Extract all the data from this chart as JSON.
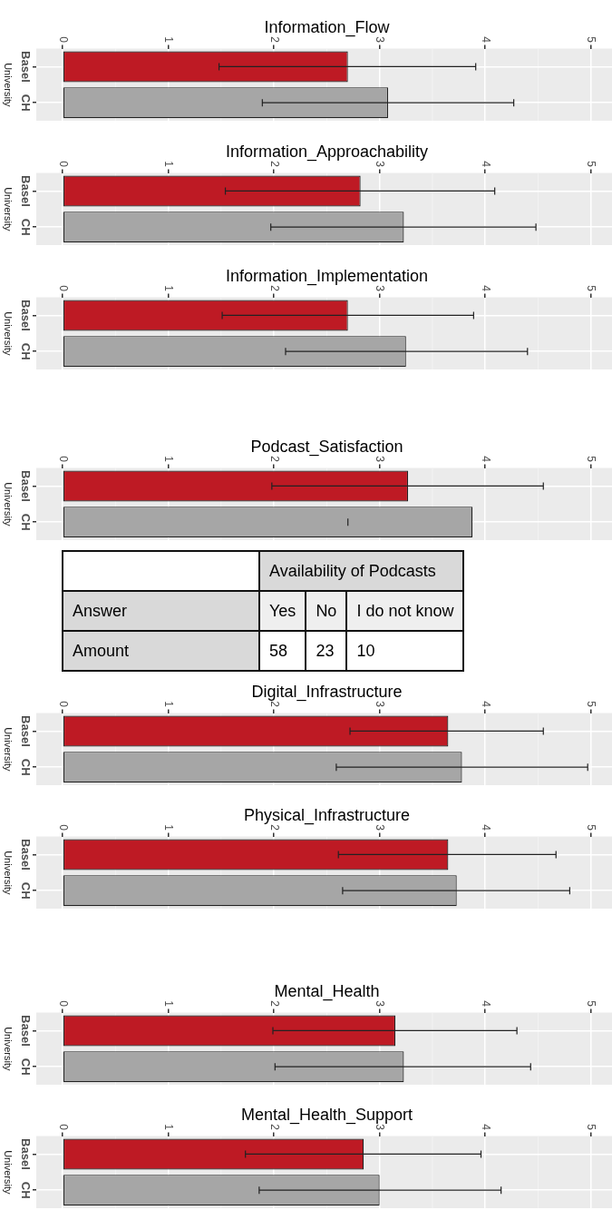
{
  "chart_data": [
    {
      "type": "bar",
      "orientation": "horizontal",
      "title": "Information_Flow",
      "ylabel": "University",
      "categories": [
        "Basel",
        "CH"
      ],
      "values": [
        2.7,
        3.08
      ],
      "colors": [
        "#be1a24",
        "#a6a6a6"
      ],
      "errors": [
        [
          1.48,
          3.91
        ],
        [
          1.89,
          4.27
        ]
      ],
      "xlim": [
        -0.25,
        5.2
      ],
      "xticks": [
        0,
        1,
        2,
        3,
        4,
        5
      ],
      "grid": true
    },
    {
      "type": "bar",
      "orientation": "horizontal",
      "title": "Information_Approachability",
      "ylabel": "University",
      "categories": [
        "Basel",
        "CH"
      ],
      "values": [
        2.82,
        3.23
      ],
      "colors": [
        "#be1a24",
        "#a6a6a6"
      ],
      "errors": [
        [
          1.54,
          4.09
        ],
        [
          1.97,
          4.48
        ]
      ],
      "xlim": [
        -0.25,
        5.2
      ],
      "xticks": [
        0,
        1,
        2,
        3,
        4,
        5
      ],
      "grid": true
    },
    {
      "type": "bar",
      "orientation": "horizontal",
      "title": "Information_Implementation",
      "ylabel": "University",
      "categories": [
        "Basel",
        "CH"
      ],
      "values": [
        2.7,
        3.25
      ],
      "colors": [
        "#be1a24",
        "#a6a6a6"
      ],
      "errors": [
        [
          1.51,
          3.89
        ],
        [
          2.11,
          4.4
        ]
      ],
      "xlim": [
        -0.25,
        5.2
      ],
      "xticks": [
        0,
        1,
        2,
        3,
        4,
        5
      ],
      "grid": true
    },
    {
      "type": "bar",
      "orientation": "horizontal",
      "title": "Podcast_Satisfaction",
      "ylabel": "University",
      "categories": [
        "Basel",
        "CH"
      ],
      "values": [
        3.27,
        3.88
      ],
      "colors": [
        "#be1a24",
        "#a6a6a6"
      ],
      "errors": [
        [
          1.98,
          4.55
        ],
        [
          2.7,
          2.7
        ]
      ],
      "xlim": [
        -0.25,
        5.2
      ],
      "xticks": [
        0,
        1,
        2,
        3,
        4,
        5
      ],
      "grid": true
    },
    {
      "type": "other",
      "title": "Availability of Podcasts",
      "xlabel": "Answer",
      "ylabel": "Amount",
      "categories": [
        "Yes",
        "No",
        "I do not know"
      ],
      "values": [
        58,
        23,
        10
      ],
      "data_labels": true
    },
    {
      "type": "bar",
      "orientation": "horizontal",
      "title": "Digital_Infrastructure",
      "ylabel": "University",
      "categories": [
        "Basel",
        "CH"
      ],
      "values": [
        3.65,
        3.78
      ],
      "colors": [
        "#be1a24",
        "#a6a6a6"
      ],
      "errors": [
        [
          2.72,
          4.55
        ],
        [
          2.59,
          4.97
        ]
      ],
      "xlim": [
        -0.25,
        5.2
      ],
      "xticks": [
        0,
        1,
        2,
        3,
        4,
        5
      ],
      "grid": true
    },
    {
      "type": "bar",
      "orientation": "horizontal",
      "title": "Physical_Infrastructure",
      "ylabel": "University",
      "categories": [
        "Basel",
        "CH"
      ],
      "values": [
        3.65,
        3.73
      ],
      "colors": [
        "#be1a24",
        "#a6a6a6"
      ],
      "errors": [
        [
          2.61,
          4.67
        ],
        [
          2.65,
          4.8
        ]
      ],
      "xlim": [
        -0.25,
        5.2
      ],
      "xticks": [
        0,
        1,
        2,
        3,
        4,
        5
      ],
      "grid": true
    },
    {
      "type": "bar",
      "orientation": "horizontal",
      "title": "Mental_Health",
      "ylabel": "University",
      "categories": [
        "Basel",
        "CH"
      ],
      "values": [
        3.15,
        3.23
      ],
      "colors": [
        "#be1a24",
        "#a6a6a6"
      ],
      "errors": [
        [
          1.99,
          4.3
        ],
        [
          2.01,
          4.43
        ]
      ],
      "xlim": [
        -0.25,
        5.2
      ],
      "xticks": [
        0,
        1,
        2,
        3,
        4,
        5
      ],
      "grid": true
    },
    {
      "type": "bar",
      "orientation": "horizontal",
      "title": "Mental_Health_Support",
      "ylabel": "University",
      "categories": [
        "Basel",
        "CH"
      ],
      "values": [
        2.85,
        3.0
      ],
      "colors": [
        "#be1a24",
        "#a6a6a6"
      ],
      "errors": [
        [
          1.73,
          3.96
        ],
        [
          1.86,
          4.15
        ]
      ],
      "xlim": [
        -0.25,
        5.2
      ],
      "xticks": [
        0,
        1,
        2,
        3,
        4,
        5
      ],
      "grid": true
    }
  ]
}
